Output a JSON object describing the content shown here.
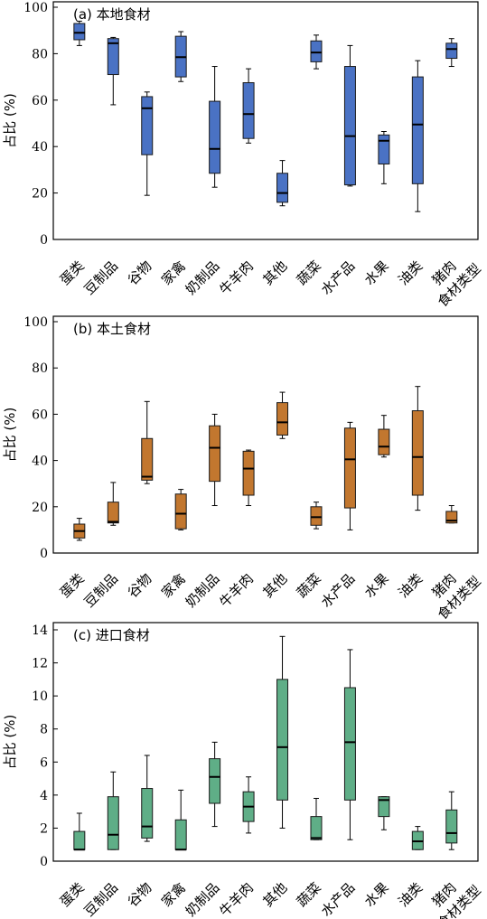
{
  "chart_data": [
    {
      "type": "boxplot",
      "title": "(a) 本地食材",
      "ylabel": "占比 (%)",
      "xlabel": "食材类型",
      "ylim": [
        0,
        100
      ],
      "yticks": [
        0,
        20,
        40,
        60,
        80,
        100
      ],
      "grid": false,
      "color": "#4a72c4",
      "categories": [
        "蛋类",
        "豆制品",
        "谷物",
        "家禽",
        "奶制品",
        "牛羊肉",
        "其他",
        "蔬菜",
        "水产品",
        "水果",
        "油类",
        "猪肉"
      ],
      "series": [
        {
          "min": 83.5,
          "q1": 86,
          "median": 89,
          "q3": 93,
          "max": 94
        },
        {
          "min": 58,
          "q1": 71,
          "median": 84.5,
          "q3": 86.5,
          "max": 87
        },
        {
          "min": 19,
          "q1": 36.5,
          "median": 56.5,
          "q3": 61.5,
          "max": 63.5
        },
        {
          "min": 68,
          "q1": 70,
          "median": 78.5,
          "q3": 87.5,
          "max": 89.5
        },
        {
          "min": 22.5,
          "q1": 28.5,
          "median": 39,
          "q3": 59.5,
          "max": 74.5
        },
        {
          "min": 41.5,
          "q1": 43.5,
          "median": 54,
          "q3": 67.5,
          "max": 73.5
        },
        {
          "min": 14.5,
          "q1": 16,
          "median": 20,
          "q3": 28.5,
          "max": 34
        },
        {
          "min": 73.5,
          "q1": 76.5,
          "median": 80.5,
          "q3": 85.5,
          "max": 88
        },
        {
          "min": 23,
          "q1": 23.5,
          "median": 44.5,
          "q3": 74.5,
          "max": 83.5
        },
        {
          "min": 24,
          "q1": 32.5,
          "median": 42.5,
          "q3": 45,
          "max": 46.5
        },
        {
          "min": 12,
          "q1": 24,
          "median": 49.5,
          "q3": 70,
          "max": 77
        },
        {
          "min": 74.5,
          "q1": 78,
          "median": 82,
          "q3": 84.5,
          "max": 86.5
        }
      ]
    },
    {
      "type": "boxplot",
      "title": "(b) 本土食材",
      "ylabel": "占比 (%)",
      "xlabel": "食材类型",
      "ylim": [
        0,
        100
      ],
      "yticks": [
        0,
        20,
        40,
        60,
        80,
        100
      ],
      "grid": false,
      "color": "#c2772f",
      "categories": [
        "蛋类",
        "豆制品",
        "谷物",
        "家禽",
        "奶制品",
        "牛羊肉",
        "其他",
        "蔬菜",
        "水产品",
        "水果",
        "油类",
        "猪肉"
      ],
      "series": [
        {
          "min": 5.5,
          "q1": 6.5,
          "median": 9.5,
          "q3": 12.5,
          "max": 15
        },
        {
          "min": 12,
          "q1": 13,
          "median": 13.5,
          "q3": 22,
          "max": 30.5
        },
        {
          "min": 30,
          "q1": 31.5,
          "median": 33,
          "q3": 49.5,
          "max": 65.5
        },
        {
          "min": 10,
          "q1": 10.5,
          "median": 17,
          "q3": 25.5,
          "max": 27.5
        },
        {
          "min": 20.5,
          "q1": 31,
          "median": 45.5,
          "q3": 55,
          "max": 60
        },
        {
          "min": 20.5,
          "q1": 25,
          "median": 36.5,
          "q3": 44,
          "max": 44.5
        },
        {
          "min": 49.5,
          "q1": 51,
          "median": 56.5,
          "q3": 65,
          "max": 69.5
        },
        {
          "min": 10.5,
          "q1": 12,
          "median": 15.5,
          "q3": 20,
          "max": 22
        },
        {
          "min": 10,
          "q1": 19.5,
          "median": 40.5,
          "q3": 54,
          "max": 56.5
        },
        {
          "min": 41.5,
          "q1": 42.5,
          "median": 46,
          "q3": 53.5,
          "max": 59.5
        },
        {
          "min": 18.5,
          "q1": 25,
          "median": 41.5,
          "q3": 61.5,
          "max": 72
        },
        {
          "min": 13,
          "q1": 13,
          "median": 14,
          "q3": 18,
          "max": 20.5
        }
      ]
    },
    {
      "type": "boxplot",
      "title": "(c) 进口食材",
      "ylabel": "占比 (%)",
      "xlabel": "食材类型",
      "ylim": [
        0,
        14
      ],
      "yticks": [
        0,
        2,
        4,
        6,
        8,
        10,
        12,
        14
      ],
      "grid": false,
      "color": "#5fae87",
      "categories": [
        "蛋类",
        "豆制品",
        "谷物",
        "家禽",
        "奶制品",
        "牛羊肉",
        "其他",
        "蔬菜",
        "水产品",
        "水果",
        "油类",
        "猪肉"
      ],
      "series": [
        {
          "min": 0.7,
          "q1": 0.7,
          "median": 0.7,
          "q3": 1.8,
          "max": 2.9
        },
        {
          "min": 0.7,
          "q1": 0.7,
          "median": 1.6,
          "q3": 3.9,
          "max": 5.4
        },
        {
          "min": 1.2,
          "q1": 1.4,
          "median": 2.1,
          "q3": 4.4,
          "max": 6.4
        },
        {
          "min": 0.7,
          "q1": 0.7,
          "median": 0.7,
          "q3": 2.5,
          "max": 4.3
        },
        {
          "min": 2.1,
          "q1": 3.5,
          "median": 5.1,
          "q3": 6.2,
          "max": 7.2
        },
        {
          "min": 1.7,
          "q1": 2.4,
          "median": 3.3,
          "q3": 4.2,
          "max": 5.1
        },
        {
          "min": 2.0,
          "q1": 3.7,
          "median": 6.9,
          "q3": 11.0,
          "max": 13.6
        },
        {
          "min": 1.3,
          "q1": 1.3,
          "median": 1.4,
          "q3": 2.7,
          "max": 3.8
        },
        {
          "min": 1.3,
          "q1": 3.7,
          "median": 7.2,
          "q3": 10.5,
          "max": 12.8
        },
        {
          "min": 1.9,
          "q1": 2.7,
          "median": 3.7,
          "q3": 3.9,
          "max": 3.9
        },
        {
          "min": 0.7,
          "q1": 0.7,
          "median": 1.2,
          "q3": 1.8,
          "max": 2.1
        },
        {
          "min": 0.7,
          "q1": 1.1,
          "median": 1.7,
          "q3": 3.1,
          "max": 4.2
        }
      ]
    }
  ]
}
